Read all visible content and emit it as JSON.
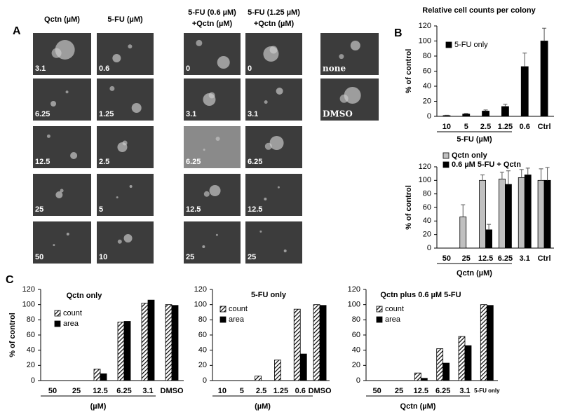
{
  "labels": {
    "a": "A",
    "b": "B",
    "c": "C"
  },
  "panel_a": {
    "columns": [
      {
        "header": [
          "Qctn (µM)"
        ],
        "images": [
          "3.1",
          "6.25",
          "12.5",
          "25",
          "50"
        ]
      },
      {
        "header": [
          "5-FU (µM)"
        ],
        "images": [
          "0.6",
          "1.25",
          "2.5",
          "5",
          "10"
        ]
      },
      {
        "header": [
          "5-FU (0.6 µM)",
          "+Qctn (µM)"
        ],
        "images": [
          "0",
          "3.1",
          "6.25",
          "12.5",
          "25"
        ]
      },
      {
        "header": [
          "5-FU (1.25 µM)",
          "+Qctn (µM)"
        ],
        "images": [
          "0",
          "3.1",
          "6.25",
          "12.5",
          "25"
        ]
      },
      {
        "images": [
          "none",
          "DMSO"
        ]
      }
    ]
  },
  "chart_data": [
    {
      "type": "bar",
      "title": "Relative cell counts per colony",
      "ylabel": "% of control",
      "xlabel": "5-FU (µM)",
      "categories": [
        "10",
        "5",
        "2.5",
        "1.25",
        "0.6",
        "Ctrl"
      ],
      "series": [
        {
          "name": "5-FU only",
          "color": "#000000",
          "values": [
            1,
            3,
            7,
            13,
            66,
            100
          ],
          "errors": [
            0.5,
            1,
            1.5,
            3,
            18,
            17
          ]
        }
      ],
      "ylim": [
        0,
        120
      ],
      "yticks": [
        0,
        20,
        40,
        60,
        80,
        100,
        120
      ],
      "legend": "upper left"
    },
    {
      "type": "bar",
      "ylabel": "% of control",
      "xlabel": "Qctn (µM)",
      "categories": [
        "50",
        "25",
        "12.5",
        "6.25",
        "3.1",
        "Ctrl"
      ],
      "series": [
        {
          "name": "Qctn only",
          "color": "#c0c0c0",
          "values": [
            0,
            46,
            100,
            102,
            104,
            100
          ],
          "errors": [
            0,
            18,
            8,
            10,
            12,
            17
          ]
        },
        {
          "name": "0.6 µM 5-FU + Qctn",
          "color": "#000000",
          "values": [
            0,
            0,
            27,
            94,
            108,
            100
          ],
          "errors": [
            0,
            0,
            8,
            20,
            10,
            19
          ]
        }
      ],
      "ylim": [
        0,
        120
      ],
      "yticks": [
        0,
        20,
        40,
        60,
        80,
        100,
        120
      ],
      "legend": "top"
    },
    {
      "type": "bar",
      "title": "Qctn only",
      "ylabel": "% of control",
      "xlabel": "(µM)",
      "categories": [
        "50",
        "25",
        "12.5",
        "6.25",
        "3.1",
        "DMSO"
      ],
      "series": [
        {
          "name": "count",
          "color": "#ffffff",
          "hatch": true,
          "values": [
            0,
            0,
            15,
            77,
            102,
            100
          ]
        },
        {
          "name": "area",
          "color": "#000000",
          "values": [
            0,
            0,
            9,
            78,
            106,
            99
          ]
        }
      ],
      "ylim": [
        0,
        120
      ],
      "yticks": [
        0,
        20,
        40,
        60,
        80,
        100,
        120
      ],
      "legend": "upper left"
    },
    {
      "type": "bar",
      "title": "5-FU only",
      "xlabel": "(µM)",
      "categories": [
        "10",
        "5",
        "2.5",
        "1.25",
        "0.6",
        "DMSO"
      ],
      "series": [
        {
          "name": "count",
          "color": "#ffffff",
          "hatch": true,
          "values": [
            0,
            0,
            6,
            27,
            94,
            100
          ]
        },
        {
          "name": "area",
          "color": "#000000",
          "values": [
            0,
            0,
            0,
            0,
            35,
            99
          ]
        }
      ],
      "ylim": [
        0,
        120
      ],
      "yticks": [
        0,
        20,
        40,
        60,
        80,
        100,
        120
      ],
      "legend": "upper left"
    },
    {
      "type": "bar",
      "title": "Qctn plus 0.6 µM 5-FU",
      "xlabel": "Qctn (µM)",
      "categories": [
        "50",
        "25",
        "12.5",
        "6.25",
        "3.1",
        "5-FU only"
      ],
      "series": [
        {
          "name": "count",
          "color": "#ffffff",
          "hatch": true,
          "values": [
            0,
            0,
            10,
            42,
            58,
            100
          ]
        },
        {
          "name": "area",
          "color": "#000000",
          "values": [
            0,
            0,
            3,
            23,
            46,
            99
          ]
        }
      ],
      "ylim": [
        0,
        120
      ],
      "yticks": [
        0,
        20,
        40,
        60,
        80,
        100,
        120
      ],
      "legend": "upper left"
    }
  ]
}
